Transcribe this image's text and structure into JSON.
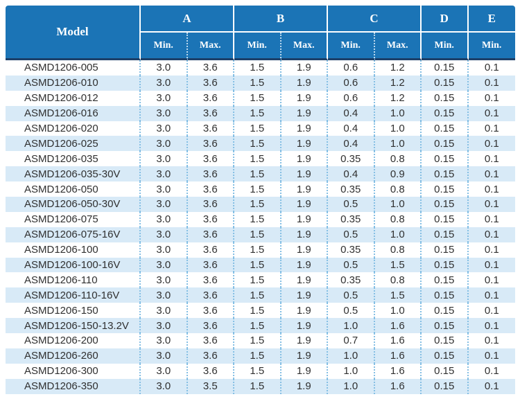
{
  "table": {
    "header": {
      "model_label": "Model",
      "groups": [
        {
          "label": "A",
          "span": 2
        },
        {
          "label": "B",
          "span": 2
        },
        {
          "label": "C",
          "span": 2
        },
        {
          "label": "D",
          "span": 1
        },
        {
          "label": "E",
          "span": 1
        }
      ],
      "subheads": [
        "Min.",
        "Max.",
        "Min.",
        "Max.",
        "Min.",
        "Max.",
        "Min.",
        "Min."
      ]
    },
    "rows": [
      {
        "model": "ASMD1206-005",
        "values": [
          "3.0",
          "3.6",
          "1.5",
          "1.9",
          "0.6",
          "1.2",
          "0.15",
          "0.1"
        ]
      },
      {
        "model": "ASMD1206-010",
        "values": [
          "3.0",
          "3.6",
          "1.5",
          "1.9",
          "0.6",
          "1.2",
          "0.15",
          "0.1"
        ]
      },
      {
        "model": "ASMD1206-012",
        "values": [
          "3.0",
          "3.6",
          "1.5",
          "1.9",
          "0.6",
          "1.2",
          "0.15",
          "0.1"
        ]
      },
      {
        "model": "ASMD1206-016",
        "values": [
          "3.0",
          "3.6",
          "1.5",
          "1.9",
          "0.4",
          "1.0",
          "0.15",
          "0.1"
        ]
      },
      {
        "model": "ASMD1206-020",
        "values": [
          "3.0",
          "3.6",
          "1.5",
          "1.9",
          "0.4",
          "1.0",
          "0.15",
          "0.1"
        ]
      },
      {
        "model": "ASMD1206-025",
        "values": [
          "3.0",
          "3.6",
          "1.5",
          "1.9",
          "0.4",
          "1.0",
          "0.15",
          "0.1"
        ]
      },
      {
        "model": "ASMD1206-035",
        "values": [
          "3.0",
          "3.6",
          "1.5",
          "1.9",
          "0.35",
          "0.8",
          "0.15",
          "0.1"
        ]
      },
      {
        "model": "ASMD1206-035-30V",
        "values": [
          "3.0",
          "3.6",
          "1.5",
          "1.9",
          "0.4",
          "0.9",
          "0.15",
          "0.1"
        ]
      },
      {
        "model": "ASMD1206-050",
        "values": [
          "3.0",
          "3.6",
          "1.5",
          "1.9",
          "0.35",
          "0.8",
          "0.15",
          "0.1"
        ]
      },
      {
        "model": "ASMD1206-050-30V",
        "values": [
          "3.0",
          "3.6",
          "1.5",
          "1.9",
          "0.5",
          "1.0",
          "0.15",
          "0.1"
        ]
      },
      {
        "model": "ASMD1206-075",
        "values": [
          "3.0",
          "3.6",
          "1.5",
          "1.9",
          "0.35",
          "0.8",
          "0.15",
          "0.1"
        ]
      },
      {
        "model": "ASMD1206-075-16V",
        "values": [
          "3.0",
          "3.6",
          "1.5",
          "1.9",
          "0.5",
          "1.0",
          "0.15",
          "0.1"
        ]
      },
      {
        "model": "ASMD1206-100",
        "values": [
          "3.0",
          "3.6",
          "1.5",
          "1.9",
          "0.35",
          "0.8",
          "0.15",
          "0.1"
        ]
      },
      {
        "model": "ASMD1206-100-16V",
        "values": [
          "3.0",
          "3.6",
          "1.5",
          "1.9",
          "0.5",
          "1.5",
          "0.15",
          "0.1"
        ]
      },
      {
        "model": "ASMD1206-110",
        "values": [
          "3.0",
          "3.6",
          "1.5",
          "1.9",
          "0.35",
          "0.8",
          "0.15",
          "0.1"
        ]
      },
      {
        "model": "ASMD1206-110-16V",
        "values": [
          "3.0",
          "3.6",
          "1.5",
          "1.9",
          "0.5",
          "1.5",
          "0.15",
          "0.1"
        ]
      },
      {
        "model": "ASMD1206-150",
        "values": [
          "3.0",
          "3.6",
          "1.5",
          "1.9",
          "0.5",
          "1.0",
          "0.15",
          "0.1"
        ]
      },
      {
        "model": "ASMD1206-150-13.2V",
        "values": [
          "3.0",
          "3.6",
          "1.5",
          "1.9",
          "1.0",
          "1.6",
          "0.15",
          "0.1"
        ]
      },
      {
        "model": "ASMD1206-200",
        "values": [
          "3.0",
          "3.6",
          "1.5",
          "1.9",
          "0.7",
          "1.6",
          "0.15",
          "0.1"
        ]
      },
      {
        "model": "ASMD1206-260",
        "values": [
          "3.0",
          "3.6",
          "1.5",
          "1.9",
          "1.0",
          "1.6",
          "0.15",
          "0.1"
        ]
      },
      {
        "model": "ASMD1206-300",
        "values": [
          "3.0",
          "3.6",
          "1.5",
          "1.9",
          "1.0",
          "1.6",
          "0.15",
          "0.1"
        ]
      },
      {
        "model": "ASMD1206-350",
        "values": [
          "3.0",
          "3.5",
          "1.5",
          "1.9",
          "1.0",
          "1.6",
          "0.15",
          "0.1"
        ]
      }
    ]
  },
  "colors": {
    "header_bg": "#1b74b6",
    "header_underline": "#1c3f68",
    "row_alt": "#d8eaf7",
    "dotted_separator": "#85bfe4",
    "text": "#303030",
    "header_text": "#ffffff"
  }
}
